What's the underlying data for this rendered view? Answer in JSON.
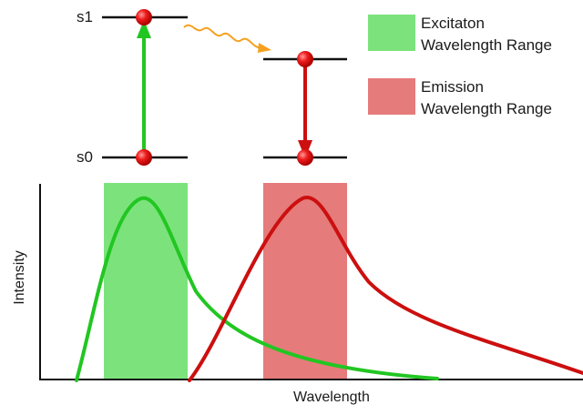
{
  "diagram": {
    "energy_levels": {
      "upper": "s1",
      "lower": "s0"
    },
    "legend": [
      {
        "line1": "Excitaton",
        "line2": "Wavelength Range",
        "color": "#7ce37c"
      },
      {
        "line1": "Emission",
        "line2": "Wavelength Range",
        "color": "#e57b7b"
      }
    ],
    "axes": {
      "xlabel": "Wavelength",
      "ylabel": "Intensity"
    },
    "colors": {
      "excitation_curve": "#22c622",
      "emission_curve": "#cc0f0f",
      "relaxation_arrow": "#f5a01e",
      "electron": "#e00000",
      "level_line": "#111111"
    }
  }
}
